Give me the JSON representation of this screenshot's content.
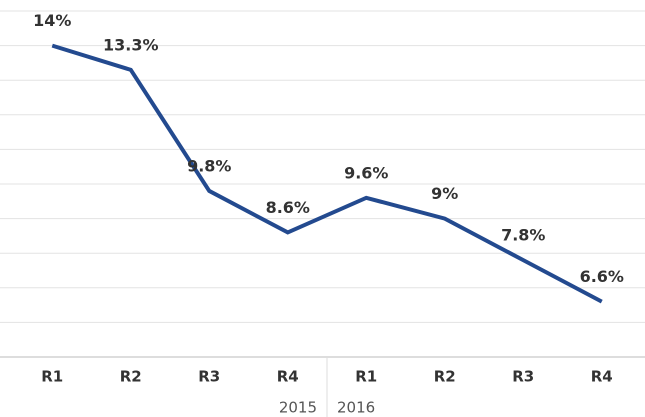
{
  "chart_data": {
    "type": "line",
    "categories": [
      "R1",
      "R2",
      "R3",
      "R4",
      "R1",
      "R2",
      "R3",
      "R4"
    ],
    "groups": [
      "2015",
      "2016"
    ],
    "series": [
      {
        "color": "#234a8f",
        "values": [
          14,
          13.3,
          9.8,
          8.6,
          9.6,
          9,
          7.8,
          6.6
        ],
        "value_labels": [
          "14%",
          "13.3%",
          "9.8%",
          "8.6%",
          "9.6%",
          "9%",
          "7.8%",
          "6.6%"
        ]
      }
    ],
    "ylim": [
      5,
      15
    ],
    "yticks": [
      5,
      6,
      7,
      8,
      9,
      10,
      11,
      12,
      13,
      14,
      15
    ],
    "grid": true
  }
}
